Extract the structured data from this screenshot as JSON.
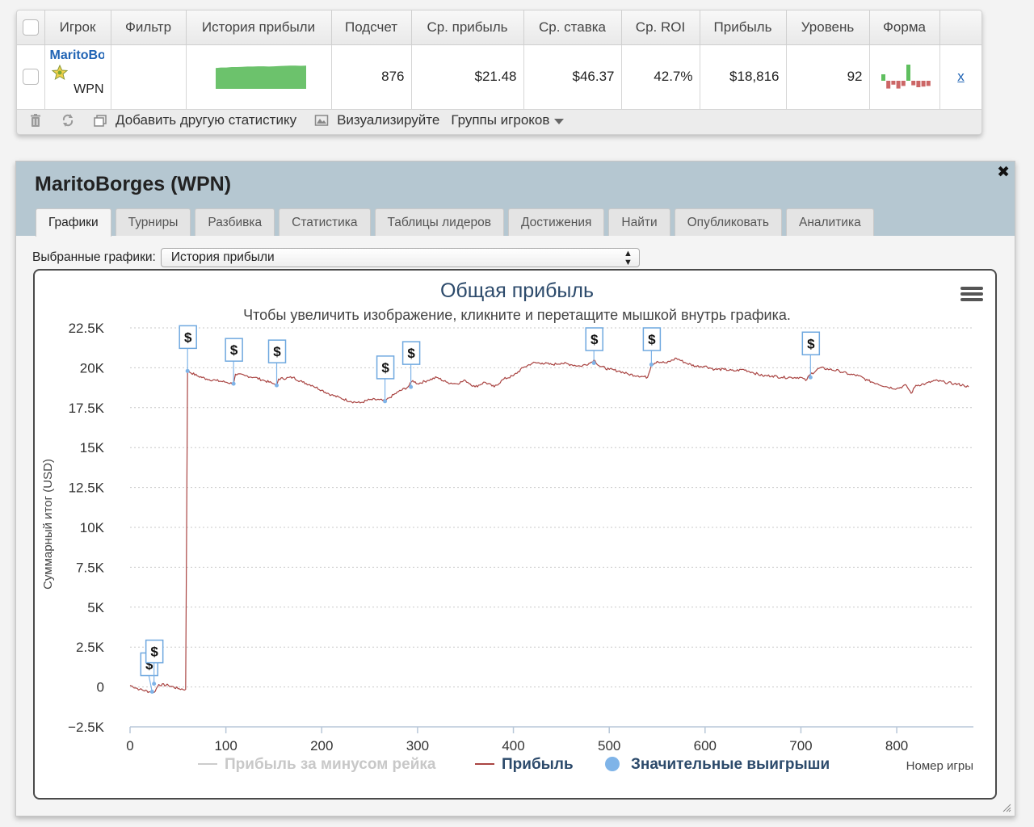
{
  "stats_table": {
    "headers": [
      "Игрок",
      "Фильтр",
      "История прибыли",
      "Подсчет",
      "Ср. прибыль",
      "Ср. ставка",
      "Ср. ROI",
      "Прибыль",
      "Уровень",
      "Форма"
    ],
    "row": {
      "player_name": "MaritoBorges",
      "player_site": "WPN",
      "filter": "",
      "count": "876",
      "avg_profit": "$21.48",
      "avg_stake": "$46.37",
      "avg_roi": "42.7%",
      "profit": "$18,816",
      "level": "92",
      "remove": "x"
    },
    "profit_history_sparkline": [
      0.86,
      0.88,
      0.88,
      0.9,
      0.9,
      0.91,
      0.92,
      0.92,
      0.93,
      0.93,
      0.92,
      0.93,
      0.94,
      0.95,
      0.96,
      0.96,
      0.95,
      0.96
    ],
    "form_bars": [
      1,
      -1.2,
      -0.6,
      -1.2,
      -0.8,
      2.5,
      -0.7,
      -1,
      -0.9,
      -0.8
    ],
    "colors": {
      "sparkline": "#6cc26c",
      "form_positive": "#5fbf5f",
      "form_negative": "#cc6666"
    }
  },
  "toolbar": {
    "add_stat": "Добавить другую статистику",
    "visualize": "Визуализируйте",
    "player_groups": "Группы игроков"
  },
  "panel": {
    "title": "MaritoBorges (WPN)",
    "tabs": [
      "Графики",
      "Турниры",
      "Разбивка",
      "Статистика",
      "Таблицы лидеров",
      "Достижения",
      "Найти",
      "Опубликовать",
      "Аналитика"
    ],
    "active_tab": 0,
    "select_label": "Выбранные графики:",
    "select_value": "История прибыли"
  },
  "chart_data": {
    "type": "line",
    "title": "Общая прибыль",
    "subtitle": "Чтобы увеличить изображение, кликните и перетащите мышкой внутрь графика.",
    "ylabel": "Суммарный итог (USD)",
    "xlabel": "Номер игры",
    "xlim": [
      0,
      880
    ],
    "ylim": [
      -2500,
      22500
    ],
    "x_ticks": [
      0,
      100,
      200,
      300,
      400,
      500,
      600,
      700,
      800
    ],
    "y_ticks": [
      -2500,
      0,
      2500,
      5000,
      7500,
      10000,
      12500,
      15000,
      17500,
      20000,
      22500
    ],
    "y_tick_labels": [
      "−2.5K",
      "0",
      "2.5K",
      "5K",
      "7.5K",
      "10K",
      "12.5K",
      "15K",
      "17.5K",
      "20K",
      "22.5K"
    ],
    "grid": true,
    "legend_position": "bottom",
    "series": [
      {
        "name": "Прибыль за минусом рейка",
        "color": "#cccccc",
        "values": []
      },
      {
        "name": "Прибыль",
        "color": "#a94442",
        "points": [
          [
            0,
            100
          ],
          [
            10,
            -150
          ],
          [
            20,
            -300
          ],
          [
            25,
            -350
          ],
          [
            30,
            150
          ],
          [
            40,
            100
          ],
          [
            50,
            -100
          ],
          [
            58,
            -150
          ],
          [
            60,
            19800
          ],
          [
            70,
            19500
          ],
          [
            80,
            19300
          ],
          [
            90,
            19200
          ],
          [
            100,
            19100
          ],
          [
            108,
            19000
          ],
          [
            110,
            19600
          ],
          [
            120,
            19500
          ],
          [
            130,
            19400
          ],
          [
            140,
            19200
          ],
          [
            150,
            19000
          ],
          [
            153,
            18900
          ],
          [
            155,
            19300
          ],
          [
            170,
            19400
          ],
          [
            180,
            19100
          ],
          [
            190,
            18900
          ],
          [
            200,
            18600
          ],
          [
            210,
            18300
          ],
          [
            220,
            18100
          ],
          [
            230,
            17900
          ],
          [
            240,
            17800
          ],
          [
            250,
            18000
          ],
          [
            260,
            18000
          ],
          [
            266,
            17900
          ],
          [
            270,
            18100
          ],
          [
            280,
            18500
          ],
          [
            290,
            18800
          ],
          [
            295,
            19200
          ],
          [
            300,
            19000
          ],
          [
            310,
            19200
          ],
          [
            320,
            19400
          ],
          [
            330,
            19100
          ],
          [
            340,
            19000
          ],
          [
            350,
            19200
          ],
          [
            360,
            18800
          ],
          [
            370,
            19100
          ],
          [
            380,
            18800
          ],
          [
            390,
            19300
          ],
          [
            400,
            19500
          ],
          [
            410,
            20000
          ],
          [
            420,
            20300
          ],
          [
            430,
            20300
          ],
          [
            440,
            20200
          ],
          [
            450,
            20300
          ],
          [
            460,
            20200
          ],
          [
            470,
            20100
          ],
          [
            480,
            20300
          ],
          [
            484,
            20500
          ],
          [
            490,
            20100
          ],
          [
            500,
            19900
          ],
          [
            510,
            19800
          ],
          [
            520,
            19600
          ],
          [
            530,
            19500
          ],
          [
            540,
            19400
          ],
          [
            544,
            20200
          ],
          [
            550,
            20400
          ],
          [
            560,
            20300
          ],
          [
            570,
            20600
          ],
          [
            580,
            20300
          ],
          [
            590,
            20100
          ],
          [
            600,
            20100
          ],
          [
            610,
            19900
          ],
          [
            620,
            19900
          ],
          [
            630,
            19800
          ],
          [
            640,
            19900
          ],
          [
            650,
            19700
          ],
          [
            660,
            19500
          ],
          [
            670,
            19500
          ],
          [
            680,
            19400
          ],
          [
            690,
            19400
          ],
          [
            700,
            19400
          ],
          [
            705,
            19200
          ],
          [
            710,
            19600
          ],
          [
            720,
            20000
          ],
          [
            730,
            19900
          ],
          [
            740,
            19800
          ],
          [
            750,
            19600
          ],
          [
            760,
            19500
          ],
          [
            770,
            19200
          ],
          [
            780,
            19000
          ],
          [
            790,
            18800
          ],
          [
            800,
            18700
          ],
          [
            810,
            18900
          ],
          [
            815,
            18400
          ],
          [
            820,
            18900
          ],
          [
            830,
            19000
          ],
          [
            840,
            19200
          ],
          [
            850,
            19100
          ],
          [
            860,
            19000
          ],
          [
            870,
            18900
          ],
          [
            875,
            18800
          ]
        ]
      },
      {
        "name": "Значительные выигрыши",
        "color": "#7fb4e8",
        "type": "markers",
        "points": [
          [
            23,
            -300
          ],
          [
            25,
            200
          ],
          [
            60,
            19800
          ],
          [
            108,
            19000
          ],
          [
            153,
            18900
          ],
          [
            266,
            17900
          ],
          [
            293,
            18800
          ],
          [
            484,
            20300
          ],
          [
            544,
            20200
          ],
          [
            710,
            19400
          ]
        ]
      }
    ],
    "marker_label": "$"
  }
}
